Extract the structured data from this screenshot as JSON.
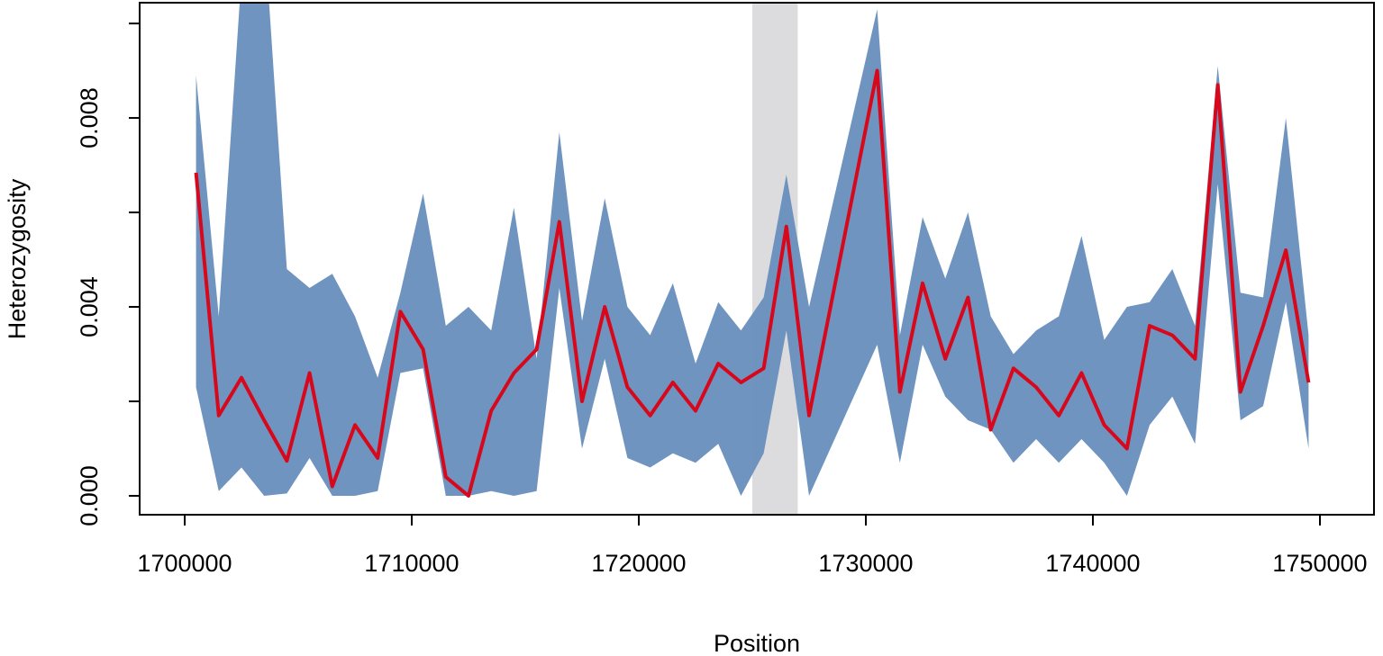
{
  "chart_data": {
    "type": "line",
    "title": "",
    "xlabel": "Position",
    "ylabel": "Heterozygosity",
    "xlim": [
      1698016,
      1752381
    ],
    "ylim": [
      -0.0004,
      0.01044
    ],
    "grid": false,
    "legend": "none",
    "x_ticks": [
      1700000,
      1710000,
      1720000,
      1730000,
      1740000,
      1750000
    ],
    "x_tick_labels": [
      "1700000",
      "1710000",
      "1720000",
      "1730000",
      "1740000",
      "1750000"
    ],
    "y_ticks": [
      0,
      0.002,
      0.004,
      0.006,
      0.008,
      0.01
    ],
    "y_tick_labels": [
      "0.000",
      "0.004",
      "0.008"
    ],
    "y_labeled_ticks": [
      0,
      0.004,
      0.008
    ],
    "highlight_region": {
      "x_start": 1725000,
      "x_end": 1727000,
      "color": "#dcdcdf"
    },
    "colors": {
      "band": "#6a91bd",
      "line": "#d7081c",
      "highlight": "#dcdcdf"
    },
    "x": [
      1700500,
      1701500,
      1702500,
      1703500,
      1704500,
      1705500,
      1706500,
      1707500,
      1708500,
      1709500,
      1710500,
      1711500,
      1712500,
      1713500,
      1714500,
      1715500,
      1716500,
      1717500,
      1718500,
      1719500,
      1720500,
      1721500,
      1722500,
      1723500,
      1724500,
      1725500,
      1726500,
      1727500,
      1730500,
      1731500,
      1732500,
      1733500,
      1734500,
      1735500,
      1736500,
      1737500,
      1738500,
      1739500,
      1740500,
      1741500,
      1742500,
      1743500,
      1744500,
      1745500,
      1746500,
      1747500,
      1748500,
      1749500
    ],
    "series": [
      {
        "name": "upper",
        "values": [
          0.0089,
          0.0038,
          0.011,
          0.012,
          0.0048,
          0.0044,
          0.0047,
          0.0038,
          0.0025,
          0.0043,
          0.0064,
          0.0036,
          0.004,
          0.0035,
          0.0061,
          0.0029,
          0.0077,
          0.0037,
          0.0063,
          0.004,
          0.0034,
          0.0045,
          0.0028,
          0.0041,
          0.0035,
          0.0042,
          0.0068,
          0.004,
          0.0103,
          0.0034,
          0.0059,
          0.0046,
          0.006,
          0.0038,
          0.003,
          0.0035,
          0.0038,
          0.0055,
          0.0033,
          0.004,
          0.0041,
          0.0048,
          0.0036,
          0.0091,
          0.0043,
          0.0042,
          0.008,
          0.0034
        ]
      },
      {
        "name": "mean",
        "values": [
          0.00684,
          0.0017,
          0.0025,
          0.0016,
          0.00074,
          0.0026,
          0.0002,
          0.0015,
          0.0008,
          0.0039,
          0.0031,
          0.0004,
          0.0,
          0.0018,
          0.0026,
          0.0031,
          0.0058,
          0.002,
          0.004,
          0.0023,
          0.0017,
          0.0024,
          0.0018,
          0.0028,
          0.0024,
          0.0027,
          0.0057,
          0.0017,
          0.009,
          0.0022,
          0.0045,
          0.0029,
          0.0042,
          0.0014,
          0.0027,
          0.0023,
          0.0017,
          0.0026,
          0.0015,
          0.001,
          0.0036,
          0.0034,
          0.0029,
          0.0087,
          0.0022,
          0.0036,
          0.0052,
          0.0024
        ]
      },
      {
        "name": "lower",
        "values": [
          0.0023,
          0.0001,
          0.0006,
          0.0,
          5e-05,
          0.0008,
          0.0,
          0.0,
          0.0001,
          0.0026,
          0.0027,
          0.0,
          0.0,
          0.0001,
          0.0,
          0.0001,
          0.0044,
          0.001,
          0.0029,
          0.0008,
          0.0006,
          0.0009,
          0.0007,
          0.0011,
          0.0,
          0.0009,
          0.0035,
          0.0,
          0.0032,
          0.0007,
          0.0032,
          0.0021,
          0.0016,
          0.0014,
          0.0007,
          0.0012,
          0.0007,
          0.0012,
          0.0007,
          0.0,
          0.0015,
          0.0021,
          0.0011,
          0.0066,
          0.0016,
          0.0019,
          0.0041,
          0.001
        ]
      }
    ]
  }
}
